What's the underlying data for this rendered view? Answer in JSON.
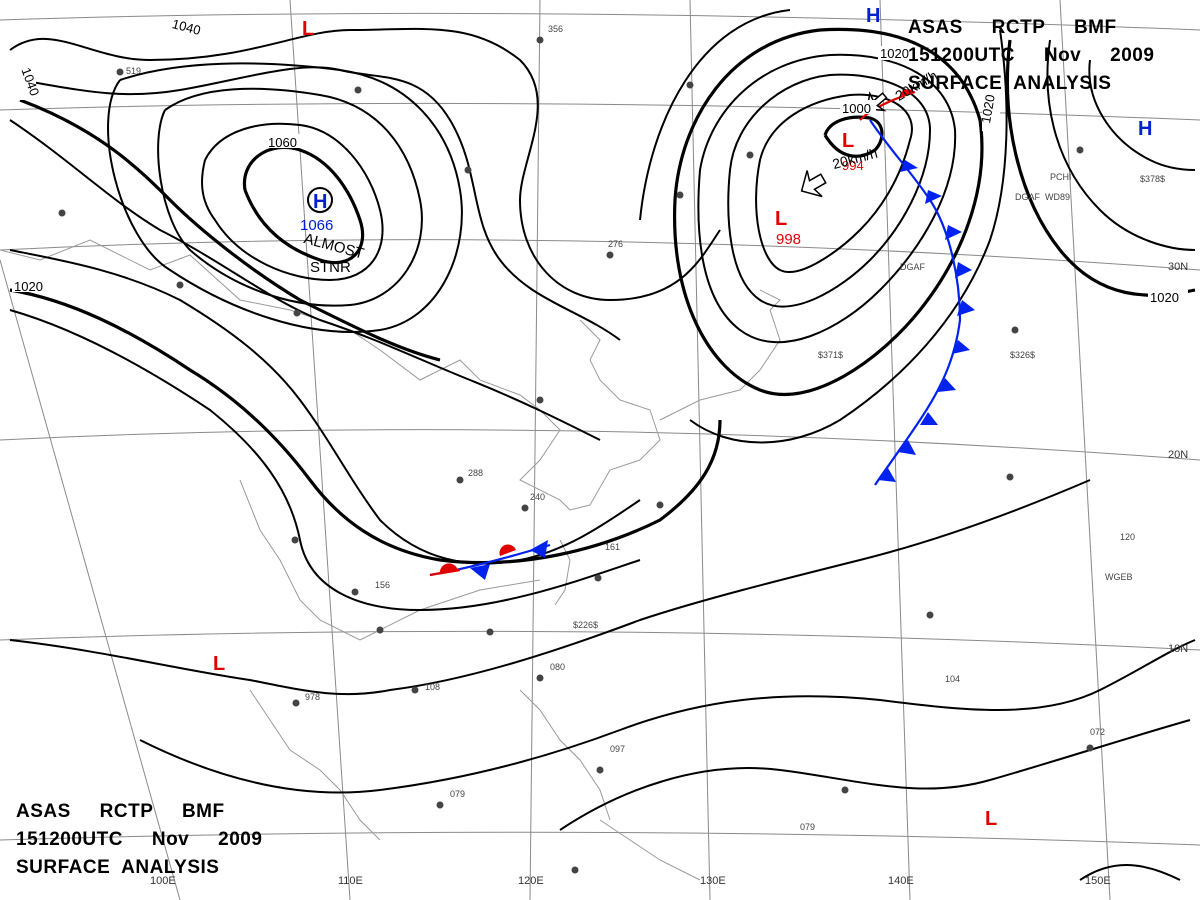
{
  "header": {
    "line1": "ASAS     RCTP     BMF",
    "line2": "151200UTC     Nov     2009",
    "line3": "SURFACE  ANALYSIS"
  },
  "isobar_labels": [
    "1040",
    "1040",
    "1060",
    "1020",
    "1000",
    "1020",
    "1020",
    "1020"
  ],
  "pressure_centers": [
    {
      "symbol": "H",
      "value": "1066",
      "note_1": "ALMOST",
      "note_2": "STNR"
    },
    {
      "symbol": "L",
      "value": "998"
    },
    {
      "symbol": "L",
      "value": "994"
    },
    {
      "symbol": "H",
      "value": ""
    },
    {
      "symbol": "H",
      "value": ""
    },
    {
      "symbol": "L",
      "value": ""
    },
    {
      "symbol": "L",
      "value": ""
    },
    {
      "symbol": "L",
      "value": ""
    }
  ],
  "motion_labels": [
    "20km/h",
    "20km/h"
  ],
  "lat_labels": [
    "30N",
    "20N",
    "10N"
  ],
  "lon_labels": [
    "100E",
    "110E",
    "120E",
    "130E",
    "140E",
    "150E"
  ],
  "station_codes": [
    "DGAF",
    "DGAF",
    "PCHI",
    "WD89",
    "WGEB",
    "$371$",
    "$378$",
    "$326$",
    "$226$"
  ],
  "colors": {
    "isobar": "#000000",
    "low_center": "#e00000",
    "high_center": "#0022cc",
    "cold_front": "#0022ee",
    "warm_front": "#e00000",
    "grid": "#8a8a8a",
    "coastline": "#9a9a9a"
  }
}
